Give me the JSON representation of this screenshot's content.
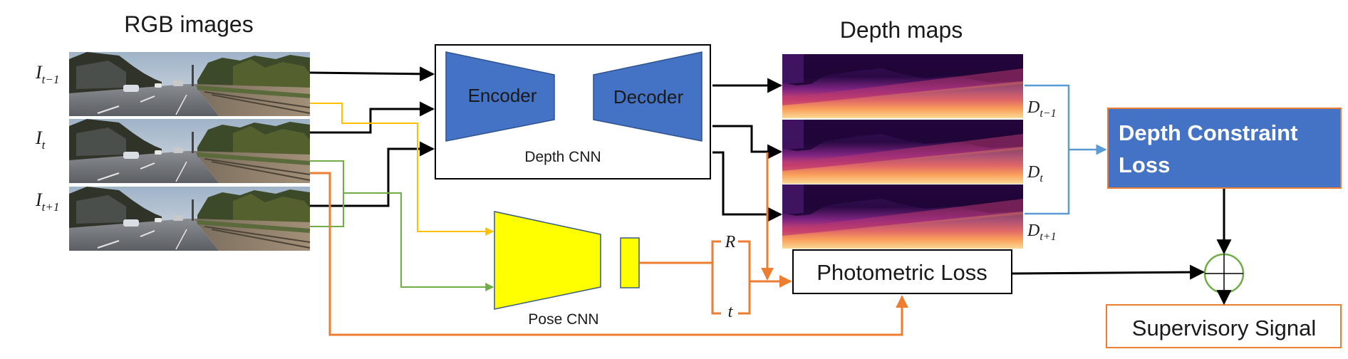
{
  "titles": {
    "rgb": "RGB images",
    "depth": "Depth maps"
  },
  "frames": {
    "prev": {
      "base": "I",
      "sub": "t−1"
    },
    "cur": {
      "base": "I",
      "sub": "t"
    },
    "next": {
      "base": "I",
      "sub": "t+1"
    }
  },
  "depth_cnn": {
    "caption": "Depth CNN",
    "encoder": "Encoder",
    "decoder": "Decoder"
  },
  "pose_cnn": {
    "caption": "Pose CNN"
  },
  "pose_outputs": {
    "rotation": "R",
    "translation": "t"
  },
  "depth_labels": {
    "prev": {
      "base": "D",
      "sub": "t−1"
    },
    "cur": {
      "base": "D",
      "sub": "t"
    },
    "next": {
      "base": "D",
      "sub": "t+1"
    }
  },
  "losses": {
    "photometric": "Photometric Loss",
    "depth_constraint_line1": "Depth Constraint",
    "depth_constraint_line2": "Loss",
    "supervisory": "Supervisory Signal"
  },
  "colors": {
    "encoder_fill": "#4472c4",
    "pose_fill": "#ffff00",
    "loss_box": "#4472c4",
    "loss_border": "#ed7d31",
    "orange": "#ed7d31",
    "yellow_line": "#ffc000",
    "green_line": "#70ad47",
    "blue_line": "#5b9bd5",
    "sum_circle": "#70ad47"
  }
}
